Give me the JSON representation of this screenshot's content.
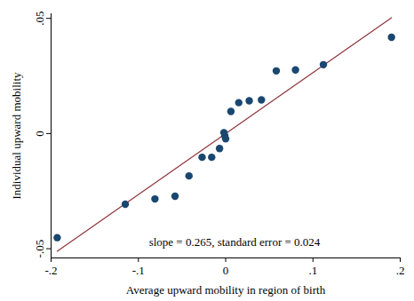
{
  "chart_data": {
    "type": "scatter",
    "x_label": "Average upward mobility in region of birth",
    "y_label": "Individual upward mobility",
    "annotation": "slope = 0.265, standard error = 0.024",
    "x": [
      -0.193,
      -0.115,
      -0.081,
      -0.058,
      -0.042,
      -0.027,
      -0.016,
      -0.007,
      -0.002,
      -0.001,
      0.0,
      0.006,
      0.015,
      0.027,
      0.041,
      0.058,
      0.08,
      0.112,
      0.19
    ],
    "values": [
      -0.0452,
      -0.0307,
      -0.0284,
      -0.0272,
      -0.0184,
      -0.0103,
      -0.0103,
      -0.0065,
      0.0004,
      -0.001,
      -0.0023,
      0.0096,
      0.0134,
      0.0142,
      0.0146,
      0.0272,
      0.0276,
      0.0299,
      0.0418
    ],
    "color": "#1a476f",
    "marker": "circle",
    "fit_line": {
      "x": [
        -0.193,
        0.19
      ],
      "y": [
        -0.0511,
        0.0503
      ],
      "color": "#90353b"
    },
    "xlim": [
      -0.2,
      0.2
    ],
    "ylim": [
      -0.054,
      0.052
    ],
    "xticks": [
      {
        "value": -0.2,
        "label": "-.2"
      },
      {
        "value": -0.1,
        "label": "-.1"
      },
      0,
      {
        "value": 0.1,
        "label": ".1"
      },
      {
        "value": 0.2,
        "label": ".2"
      }
    ],
    "yticks": [
      {
        "value": -0.05,
        "label": "-.05"
      },
      0,
      {
        "value": 0.05,
        "label": ".05"
      }
    ],
    "grid": false
  }
}
